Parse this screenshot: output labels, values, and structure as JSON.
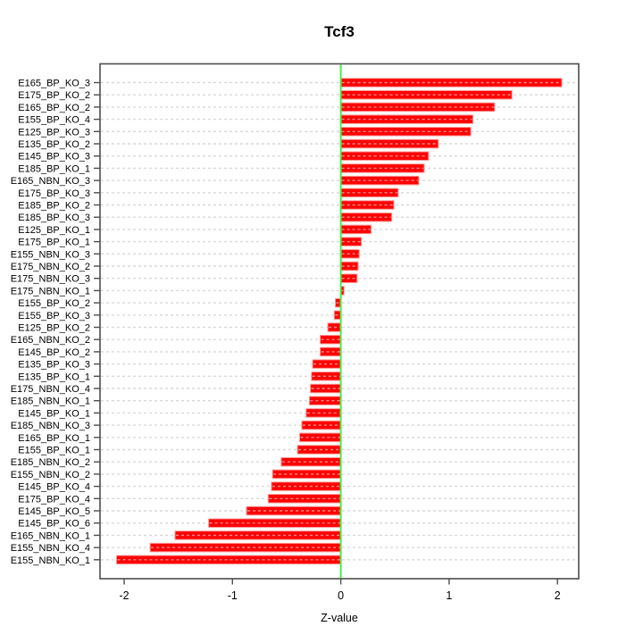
{
  "chart_data": {
    "type": "bar",
    "orientation": "horizontal",
    "title": "Tcf3",
    "xlabel": "Z-value",
    "ylabel": "",
    "xlim": [
      -2.22,
      2.2
    ],
    "xticks": [
      -2,
      -1,
      0,
      1,
      2
    ],
    "grid": true,
    "zero_line_at": 0,
    "legend": "none",
    "categories": [
      "E165_BP_KO_3",
      "E175_BP_KO_2",
      "E165_BP_KO_2",
      "E155_BP_KO_4",
      "E125_BP_KO_3",
      "E135_BP_KO_2",
      "E145_BP_KO_3",
      "E185_BP_KO_1",
      "E165_NBN_KO_3",
      "E175_BP_KO_3",
      "E185_BP_KO_2",
      "E185_BP_KO_3",
      "E125_BP_KO_1",
      "E175_BP_KO_1",
      "E155_NBN_KO_3",
      "E175_NBN_KO_2",
      "E175_NBN_KO_3",
      "E175_NBN_KO_1",
      "E155_BP_KO_2",
      "E155_BP_KO_3",
      "E125_BP_KO_2",
      "E165_NBN_KO_2",
      "E145_BP_KO_2",
      "E135_BP_KO_3",
      "E135_BP_KO_1",
      "E175_NBN_KO_4",
      "E185_NBN_KO_1",
      "E145_BP_KO_1",
      "E185_NBN_KO_3",
      "E165_BP_KO_1",
      "E155_BP_KO_1",
      "E185_NBN_KO_2",
      "E155_NBN_KO_2",
      "E145_BP_KO_4",
      "E175_BP_KO_4",
      "E145_BP_KO_5",
      "E145_BP_KO_6",
      "E165_NBN_KO_1",
      "E155_NBN_KO_4",
      "E155_NBN_KO_1"
    ],
    "values": [
      2.04,
      1.58,
      1.42,
      1.22,
      1.2,
      0.9,
      0.81,
      0.77,
      0.72,
      0.53,
      0.49,
      0.47,
      0.28,
      0.19,
      0.17,
      0.16,
      0.15,
      0.03,
      -0.05,
      -0.06,
      -0.12,
      -0.19,
      -0.19,
      -0.26,
      -0.27,
      -0.28,
      -0.29,
      -0.32,
      -0.36,
      -0.38,
      -0.4,
      -0.55,
      -0.63,
      -0.64,
      -0.67,
      -0.87,
      -1.22,
      -1.53,
      -1.76,
      -2.07
    ],
    "colors": {
      "bar_fill": "#FF0000",
      "bar_stroke": "#FF9999",
      "bar_dash_overlay": "rgba(255,255,255,0.55)",
      "grid_line": "#D9D9D9",
      "zero_line": "#44F044",
      "axis": "#4d4d4d",
      "text": "#000000",
      "background": "#FFFFFF"
    }
  }
}
